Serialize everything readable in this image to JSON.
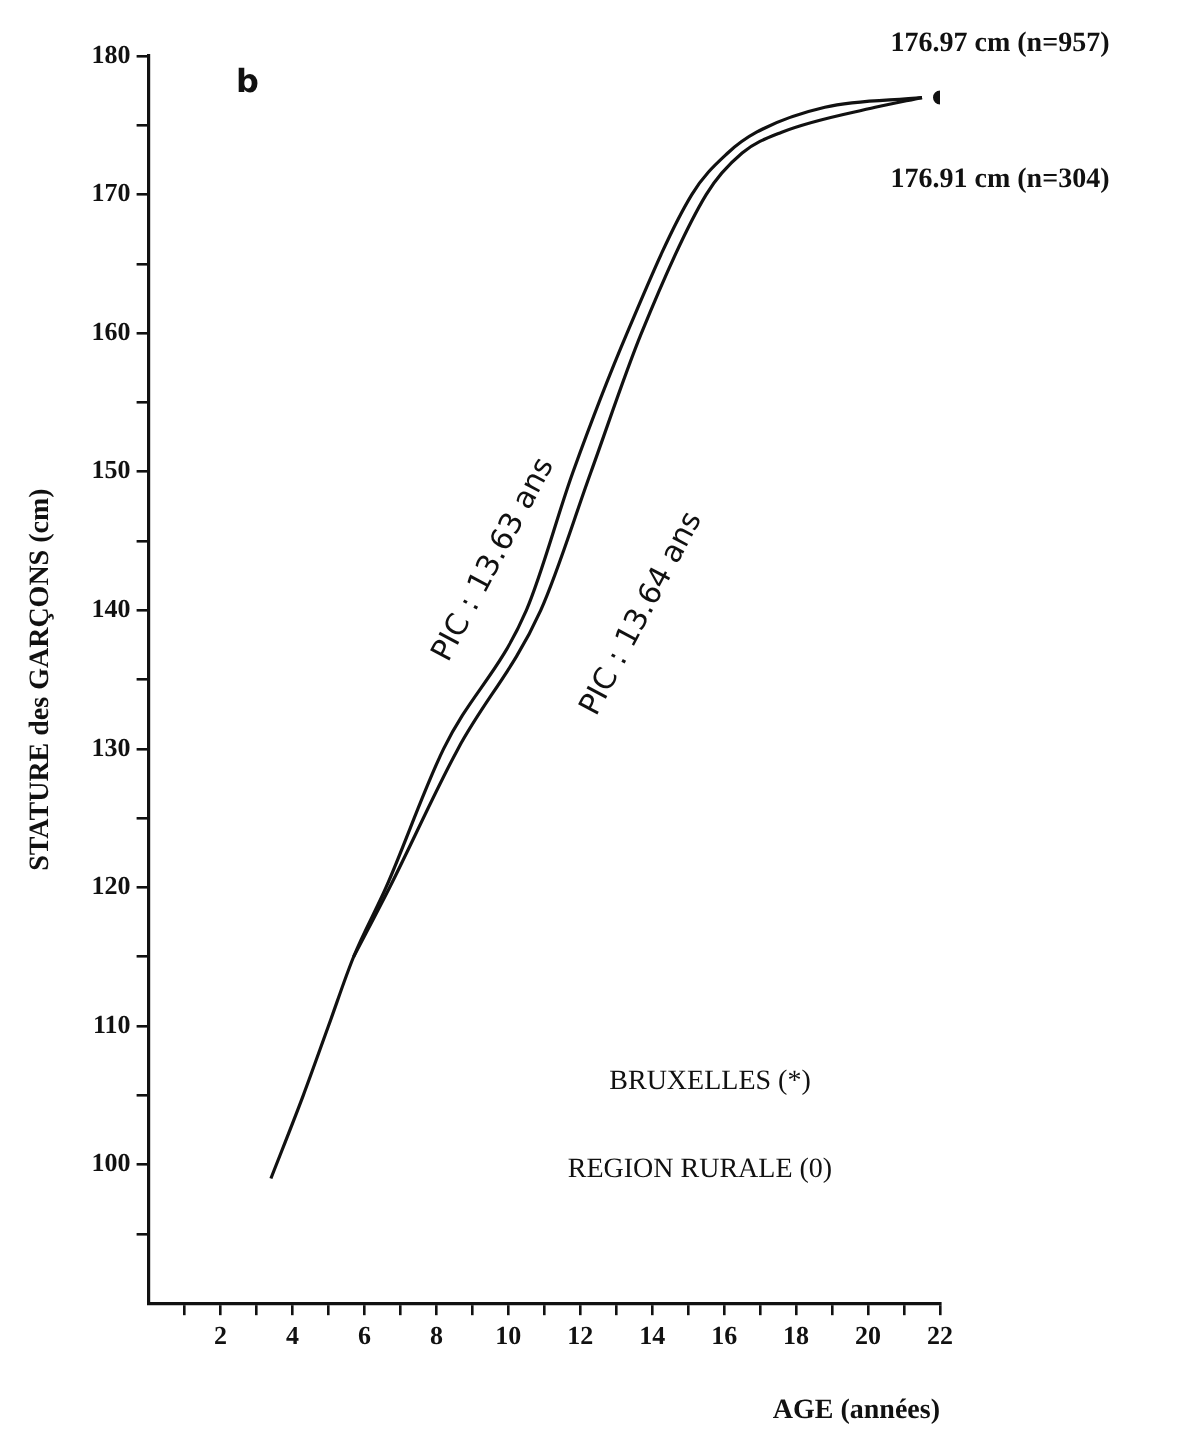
{
  "chart_data": {
    "type": "line",
    "xlabel": "AGE (années)",
    "ylabel": "STATURE des GARÇONS (cm)",
    "xlim": [
      0,
      22
    ],
    "ylim": [
      90,
      180
    ],
    "xticks": [
      {
        "value": 1,
        "label": null
      },
      2,
      {
        "value": 3,
        "label": null
      },
      4,
      {
        "value": 5,
        "label": null
      },
      6,
      {
        "value": 7,
        "label": null
      },
      8,
      {
        "value": 9,
        "label": null
      },
      10,
      {
        "value": 11,
        "label": null
      },
      12,
      {
        "value": 13,
        "label": null
      },
      14,
      {
        "value": 15,
        "label": null
      },
      16,
      {
        "value": 17,
        "label": null
      },
      18,
      {
        "value": 19,
        "label": null
      },
      20,
      {
        "value": 21,
        "label": null
      },
      22
    ],
    "yticks": [
      {
        "value": 95,
        "label": null
      },
      100,
      {
        "value": 105,
        "label": null
      },
      110,
      {
        "value": 115,
        "label": null
      },
      120,
      {
        "value": 125,
        "label": null
      },
      130,
      {
        "value": 135,
        "label": null
      },
      140,
      {
        "value": 145,
        "label": null
      },
      150,
      {
        "value": 155,
        "label": null
      },
      160,
      {
        "value": 165,
        "label": null
      },
      170,
      {
        "value": 175,
        "label": null
      },
      180
    ],
    "series": [
      {
        "color": "#111111",
        "x": [
          3.4,
          4.3,
          5.0,
          5.7,
          6.6,
          8.2,
          10.5,
          11.8,
          13.3,
          15.1,
          16.1,
          16.9,
          18.8,
          21.5
        ],
        "values": [
          99,
          105,
          110,
          115,
          120,
          130,
          140,
          150,
          160,
          170,
          173,
          174.5,
          176.3,
          177
        ]
      },
      {
        "color": "#111111",
        "x": [
          5.7,
          6.7,
          8.6,
          10.9,
          12.3,
          13.7,
          15.5,
          16.5,
          17.6,
          20.2,
          21.5
        ],
        "values": [
          115,
          120,
          130,
          140,
          150,
          160,
          170,
          173,
          174.5,
          176.3,
          177
        ]
      },
      {
        "type": "scatter",
        "color": "#111111",
        "x": [
          22
        ],
        "values": [
          177
        ]
      }
    ],
    "line_style": "solid",
    "grid": false,
    "legend": false,
    "annotations": [
      "b",
      "176.97 cm (n=957)",
      "176.91 cm (n=304)",
      "BRUXELLES (*)",
      "REGION RURALE (0)",
      "PIC : 13.63 ans",
      "PIC : 13.64 ans"
    ]
  }
}
